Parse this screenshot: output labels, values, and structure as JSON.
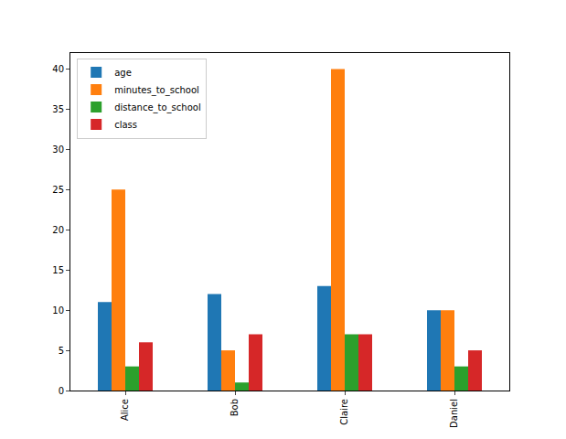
{
  "chart_data": {
    "type": "bar",
    "categories": [
      "Alice",
      "Bob",
      "Claire",
      "Daniel"
    ],
    "series": [
      {
        "name": "age",
        "color": "#1f77b4",
        "values": [
          11,
          12,
          13,
          10
        ]
      },
      {
        "name": "minutes_to_school",
        "color": "#ff7f0e",
        "values": [
          25,
          5,
          40,
          10
        ]
      },
      {
        "name": "distance_to_school",
        "color": "#2ca02c",
        "values": [
          3,
          1,
          7,
          3
        ]
      },
      {
        "name": "class",
        "color": "#d62728",
        "values": [
          6,
          7,
          7,
          5
        ]
      }
    ],
    "ylim": [
      0,
      42
    ],
    "yticks": [
      0,
      5,
      10,
      15,
      20,
      25,
      30,
      35,
      40
    ],
    "grid": false,
    "legend": "upper left"
  }
}
